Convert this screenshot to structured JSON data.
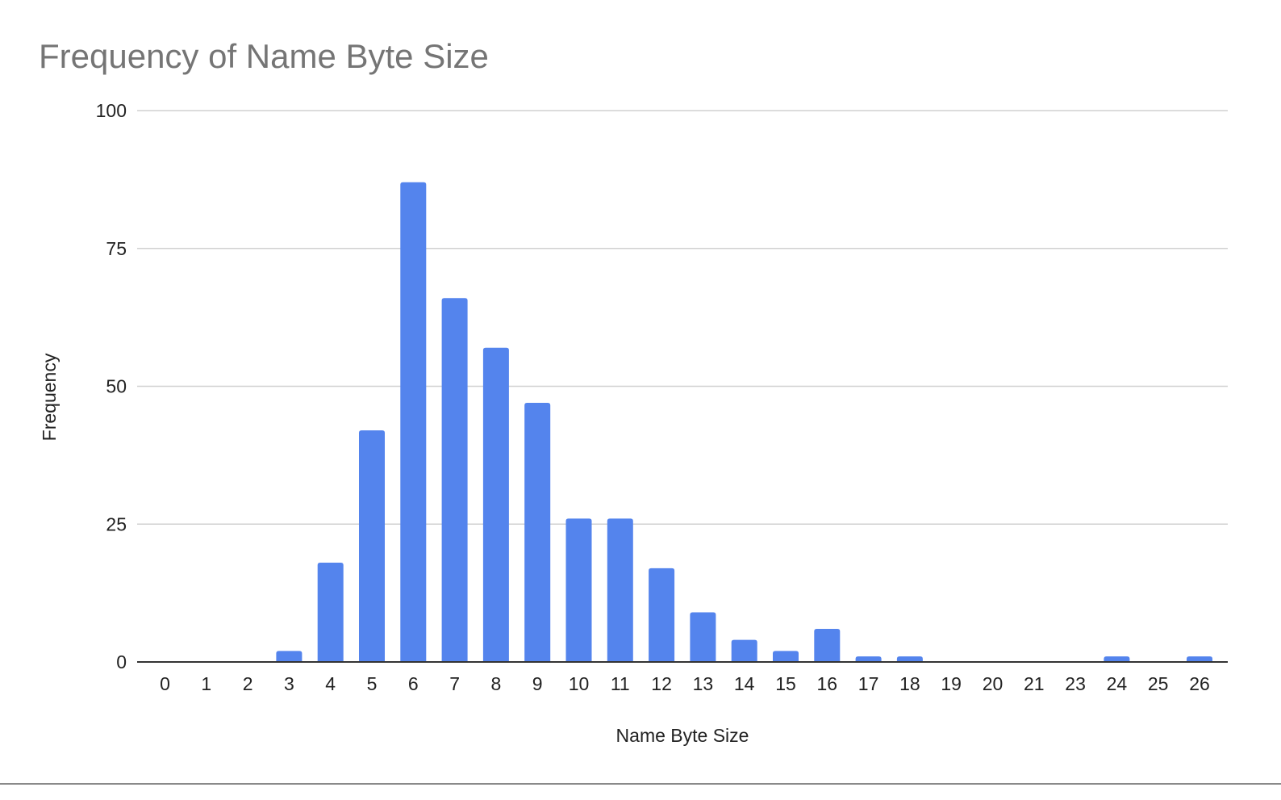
{
  "chart_data": {
    "type": "bar",
    "title": "Frequency of Name Byte Size",
    "xlabel": "Name Byte Size",
    "ylabel": "Frequency",
    "categories": [
      "0",
      "1",
      "2",
      "3",
      "4",
      "5",
      "6",
      "7",
      "8",
      "9",
      "10",
      "11",
      "12",
      "13",
      "14",
      "15",
      "16",
      "17",
      "18",
      "19",
      "20",
      "21",
      "23",
      "24",
      "25",
      "26"
    ],
    "values": [
      0,
      0,
      0,
      2,
      18,
      42,
      87,
      66,
      57,
      47,
      26,
      26,
      17,
      9,
      4,
      2,
      6,
      1,
      1,
      0,
      0,
      0,
      0,
      1,
      0,
      1
    ],
    "ylim": [
      0,
      100
    ],
    "yticks": [
      0,
      25,
      50,
      75,
      100
    ],
    "grid": true,
    "legend": "none",
    "colors": {
      "bar": "#5484ed",
      "title": "#757575",
      "grid": "#d0d0d0",
      "axis": "#333333",
      "text": "#222222"
    }
  }
}
